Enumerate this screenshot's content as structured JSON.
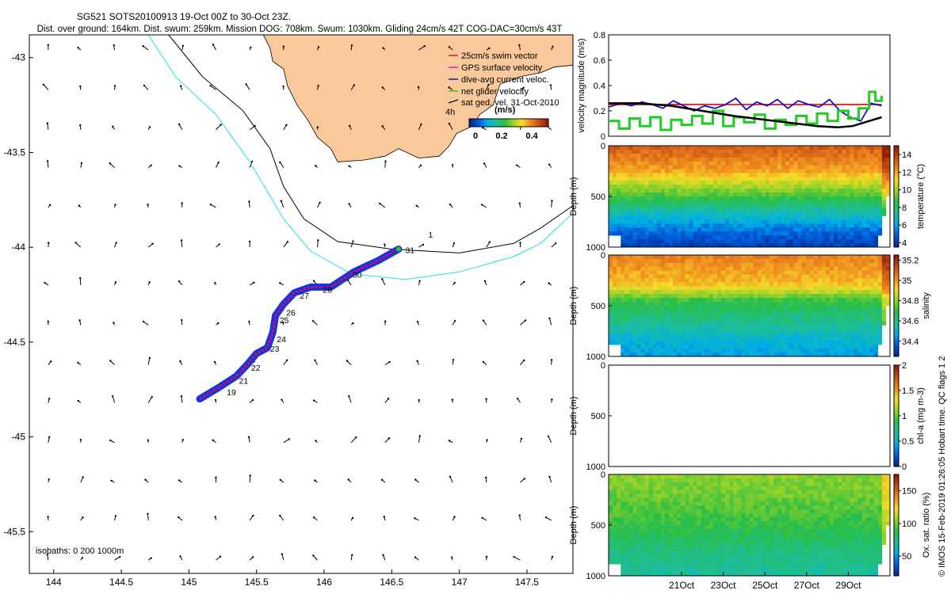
{
  "header": {
    "title": "SG521 SOTS20100913 19-Oct 00Z to 30-Oct 23Z.",
    "subtitle": "Dist. over ground: 164km. Dist. swum: 259km. Mission DOG: 708km. Swum: 1030km. Gliding 24cm/s 42T COG-DAC=30cm/s 43T"
  },
  "colors": {
    "land": "#f9c99b",
    "isobath_200": "#000000",
    "isobath_1000": "#22ddee",
    "swim_vector": "#ee1111",
    "gps_velocity": "#cc22cc",
    "dive_current": "#1111cc",
    "net_glider": "#22cc22",
    "track_fill": "#1530ee"
  },
  "map": {
    "xlim": [
      143.82,
      147.84
    ],
    "ylim": [
      -45.72,
      -42.88
    ],
    "xticks": [
      144,
      144.5,
      145,
      145.5,
      146,
      146.5,
      147,
      147.5
    ],
    "xtick_labels": [
      "144",
      "144.5",
      "145",
      "145.5",
      "146",
      "146.5",
      "147",
      "147.5"
    ],
    "yticks": [
      -43,
      -43.5,
      -44,
      -44.5,
      -45,
      -45.5
    ],
    "ytick_labels": [
      "-43",
      "-43.5",
      "-44",
      "-44.5",
      "-45",
      "-45.5"
    ],
    "legend": {
      "items": [
        "25cm/s swim vector",
        "GPS surface velocity",
        "dive-avg current veloc.",
        "net glider velocity",
        "sat ged. vel. 31-Oct-2010"
      ],
      "scale_label": "4h",
      "unit_label": "(m/s)",
      "colorbar_ticks": [
        "0",
        "0.2",
        "0.4"
      ],
      "colorbar_range": [
        0,
        0.48
      ]
    },
    "isobath_note": "isobaths: 0   200  1000m",
    "isobath_200": [
      [
        144.85,
        -42.88
      ],
      [
        145.1,
        -43.1
      ],
      [
        145.4,
        -43.28
      ],
      [
        145.6,
        -43.48
      ],
      [
        145.7,
        -43.68
      ],
      [
        145.85,
        -43.85
      ],
      [
        146.1,
        -43.97
      ],
      [
        146.5,
        -44.01
      ],
      [
        147,
        -44.03
      ],
      [
        147.4,
        -43.98
      ],
      [
        147.6,
        -43.9
      ],
      [
        147.84,
        -43.78
      ]
    ],
    "isobath_1000": [
      [
        144.7,
        -42.88
      ],
      [
        144.9,
        -43.1
      ],
      [
        145.2,
        -43.3
      ],
      [
        145.45,
        -43.55
      ],
      [
        145.7,
        -43.85
      ],
      [
        145.9,
        -44.02
      ],
      [
        146.2,
        -44.14
      ],
      [
        146.6,
        -44.17
      ],
      [
        147,
        -44.13
      ],
      [
        147.4,
        -44.05
      ],
      [
        147.6,
        -43.98
      ],
      [
        147.84,
        -43.82
      ]
    ],
    "land_outline": [
      [
        145.55,
        -42.88
      ],
      [
        147.84,
        -42.88
      ],
      [
        147.84,
        -43.04
      ],
      [
        147.7,
        -43.05
      ],
      [
        147.6,
        -43.08
      ],
      [
        147.45,
        -43.1
      ],
      [
        147.3,
        -43.14
      ],
      [
        147.25,
        -43.25
      ],
      [
        147.15,
        -43.3
      ],
      [
        147.1,
        -43.36
      ],
      [
        146.98,
        -43.4
      ],
      [
        146.92,
        -43.47
      ],
      [
        146.85,
        -43.52
      ],
      [
        146.7,
        -43.53
      ],
      [
        146.55,
        -43.48
      ],
      [
        146.45,
        -43.52
      ],
      [
        146.3,
        -43.54
      ],
      [
        146.1,
        -43.55
      ],
      [
        146.05,
        -43.48
      ],
      [
        145.95,
        -43.42
      ],
      [
        145.88,
        -43.33
      ],
      [
        145.8,
        -43.25
      ],
      [
        145.73,
        -43.15
      ],
      [
        145.7,
        -43.06
      ],
      [
        145.62,
        -43.02
      ],
      [
        145.6,
        -42.95
      ]
    ],
    "track": [
      [
        145.08,
        -44.8
      ],
      [
        145.22,
        -44.74
      ],
      [
        145.35,
        -44.68
      ],
      [
        145.43,
        -44.62
      ],
      [
        145.5,
        -44.56
      ],
      [
        145.58,
        -44.53
      ],
      [
        145.62,
        -44.45
      ],
      [
        145.64,
        -44.36
      ],
      [
        145.7,
        -44.3
      ],
      [
        145.78,
        -44.24
      ],
      [
        145.9,
        -44.21
      ],
      [
        146.05,
        -44.21
      ],
      [
        146.22,
        -44.13
      ],
      [
        146.4,
        -44.07
      ],
      [
        146.55,
        -44.01
      ]
    ],
    "day_labels": [
      [
        "19",
        145.28,
        -44.78
      ],
      [
        "21",
        145.37,
        -44.72
      ],
      [
        "22",
        145.46,
        -44.65
      ],
      [
        "23",
        145.6,
        -44.55
      ],
      [
        "24",
        145.65,
        -44.5
      ],
      [
        "25",
        145.67,
        -44.4
      ],
      [
        "26",
        145.72,
        -44.36
      ],
      [
        "27",
        145.82,
        -44.27
      ],
      [
        "28",
        145.99,
        -44.24
      ],
      [
        "30",
        146.21,
        -44.16
      ],
      [
        "31",
        146.6,
        -44.03
      ],
      [
        "1",
        146.77,
        -43.95
      ]
    ],
    "vector_lons": [
      143.96,
      144.2,
      144.45,
      144.7,
      144.95,
      145.2,
      145.45,
      145.7,
      145.95,
      146.2,
      146.45,
      146.7,
      146.95,
      147.2,
      147.45,
      147.68
    ],
    "vector_lats": [
      -42.96,
      -43.17,
      -43.38,
      -43.58,
      -43.79,
      -44.0,
      -44.2,
      -44.41,
      -44.62,
      -44.82,
      -45.03,
      -45.24,
      -45.44,
      -45.65
    ]
  },
  "chart_data": [
    {
      "type": "line",
      "title": "velocity magnitude",
      "ylabel": "velocity magnitude (m/s)",
      "ylim": [
        0,
        0.8
      ],
      "yticks": [
        0,
        0.2,
        0.4,
        0.6,
        0.8
      ],
      "ytick_labels": [
        "0",
        "0.2",
        "0.4",
        "0.6",
        "0.8"
      ],
      "xlim_day": [
        17.5,
        31.0
      ],
      "series": [
        {
          "name": "25cm/s swim vector",
          "color": "#ee1111",
          "x": [
            17.5,
            30.6
          ],
          "y": [
            0.25,
            0.25
          ]
        },
        {
          "name": "dive-avg current veloc.",
          "color": "#1111cc",
          "x": [
            17.5,
            18.1,
            18.6,
            19.1,
            19.6,
            20.1,
            20.6,
            21.1,
            21.6,
            22.1,
            22.6,
            23.1,
            23.6,
            24.1,
            24.6,
            25.1,
            25.6,
            26.1,
            26.6,
            27.1,
            27.6,
            28.1,
            28.6,
            29.1,
            29.6,
            30.1,
            30.6
          ],
          "y": [
            0.23,
            0.26,
            0.24,
            0.27,
            0.25,
            0.22,
            0.28,
            0.24,
            0.2,
            0.24,
            0.22,
            0.25,
            0.3,
            0.21,
            0.27,
            0.24,
            0.29,
            0.22,
            0.28,
            0.25,
            0.23,
            0.29,
            0.2,
            0.15,
            0.12,
            0.26,
            0.24
          ]
        },
        {
          "name": "net glider velocity",
          "color": "#22cc22",
          "x": [
            17.5,
            18.0,
            18.5,
            19.0,
            19.5,
            20.0,
            20.5,
            21.0,
            21.5,
            22.0,
            22.5,
            23.0,
            23.5,
            24.0,
            24.5,
            25.0,
            25.5,
            26.0,
            26.5,
            27.0,
            27.5,
            28.0,
            28.5,
            29.0,
            29.5,
            30.0,
            30.3,
            30.6
          ],
          "y": [
            0.12,
            0.06,
            0.14,
            0.08,
            0.15,
            0.05,
            0.13,
            0.09,
            0.16,
            0.1,
            0.2,
            0.08,
            0.15,
            0.11,
            0.17,
            0.06,
            0.13,
            0.09,
            0.16,
            0.1,
            0.18,
            0.12,
            0.2,
            0.14,
            0.22,
            0.35,
            0.28,
            0.32
          ]
        },
        {
          "name": "smoothed",
          "color": "#000000",
          "x": [
            17.5,
            19.0,
            20.5,
            22.0,
            23.5,
            25.0,
            26.5,
            27.5,
            28.5,
            29.2,
            30.0,
            30.6
          ],
          "y": [
            0.26,
            0.26,
            0.24,
            0.2,
            0.16,
            0.13,
            0.1,
            0.08,
            0.07,
            0.08,
            0.12,
            0.15
          ]
        }
      ]
    },
    {
      "type": "heatmap",
      "title": "temperature",
      "ylabel": "Depth (m)",
      "colorbar_label": "temperature (°C)",
      "ylim": [
        1000,
        0
      ],
      "yticks": [
        0,
        500,
        1000
      ],
      "ytick_labels": [
        "0",
        "500",
        "1000"
      ],
      "clim": [
        3.5,
        15
      ],
      "colorbar_ticks": [
        4,
        6,
        8,
        10,
        12,
        14
      ],
      "colorbar_tick_labels": [
        "4",
        "6",
        "8",
        "10",
        "12",
        "14"
      ],
      "layer_depths": [
        0,
        250,
        450,
        650,
        850,
        1000
      ],
      "layer_values": [
        13.5,
        12,
        9.5,
        7,
        5,
        4
      ]
    },
    {
      "type": "heatmap",
      "title": "salinity",
      "ylabel": "Depth (m)",
      "colorbar_label": "salinity",
      "ylim": [
        1000,
        0
      ],
      "yticks": [
        0,
        500,
        1000
      ],
      "ytick_labels": [
        "0",
        "500",
        "1000"
      ],
      "clim": [
        34.25,
        35.25
      ],
      "colorbar_ticks": [
        34.4,
        34.6,
        34.8,
        35,
        35.2
      ],
      "colorbar_tick_labels": [
        "34.4",
        "34.6",
        "34.8",
        "35",
        "35.2"
      ],
      "layer_depths": [
        0,
        300,
        450,
        650,
        850,
        1000
      ],
      "layer_values": [
        35.05,
        34.95,
        34.7,
        34.6,
        34.5,
        34.45
      ]
    },
    {
      "type": "heatmap",
      "title": "chl-a",
      "ylabel": "Depth (m)",
      "colorbar_label": "chl-a (mg m-3)",
      "ylim": [
        1000,
        0
      ],
      "yticks": [
        0,
        500,
        1000
      ],
      "ytick_labels": [
        "0",
        "500",
        "1000"
      ],
      "clim": [
        0,
        2
      ],
      "colorbar_ticks": [
        0,
        0.5,
        1,
        1.5,
        2
      ],
      "colorbar_tick_labels": [
        "0",
        "0.5",
        "1",
        "1.5",
        "2"
      ],
      "layer_depths": [],
      "layer_values": []
    },
    {
      "type": "heatmap",
      "title": "Ox. sat. ratio",
      "ylabel": "Depth (m)",
      "colorbar_label": "Ox. sat. ratio (%)",
      "ylim": [
        1000,
        0
      ],
      "yticks": [
        0,
        500,
        1000
      ],
      "ytick_labels": [
        "0",
        "500",
        "1000"
      ],
      "clim": [
        20,
        175
      ],
      "colorbar_ticks": [
        50,
        100,
        150
      ],
      "colorbar_tick_labels": [
        "50",
        "100",
        "150"
      ],
      "layer_depths": [
        0,
        200,
        500,
        750,
        1000
      ],
      "layer_values": [
        105,
        100,
        90,
        78,
        70
      ],
      "xlim_day": [
        17.5,
        31.0
      ],
      "xticks_day": [
        21,
        23,
        25,
        27,
        29
      ],
      "xtick_labels": [
        "21Oct",
        "23Oct",
        "25Oct",
        "27Oct",
        "29Oct"
      ]
    }
  ],
  "footer": {
    "credit": "© IMOS 15-Feb-2019 01:26:05 Hobart time. QC flags 1  2"
  }
}
